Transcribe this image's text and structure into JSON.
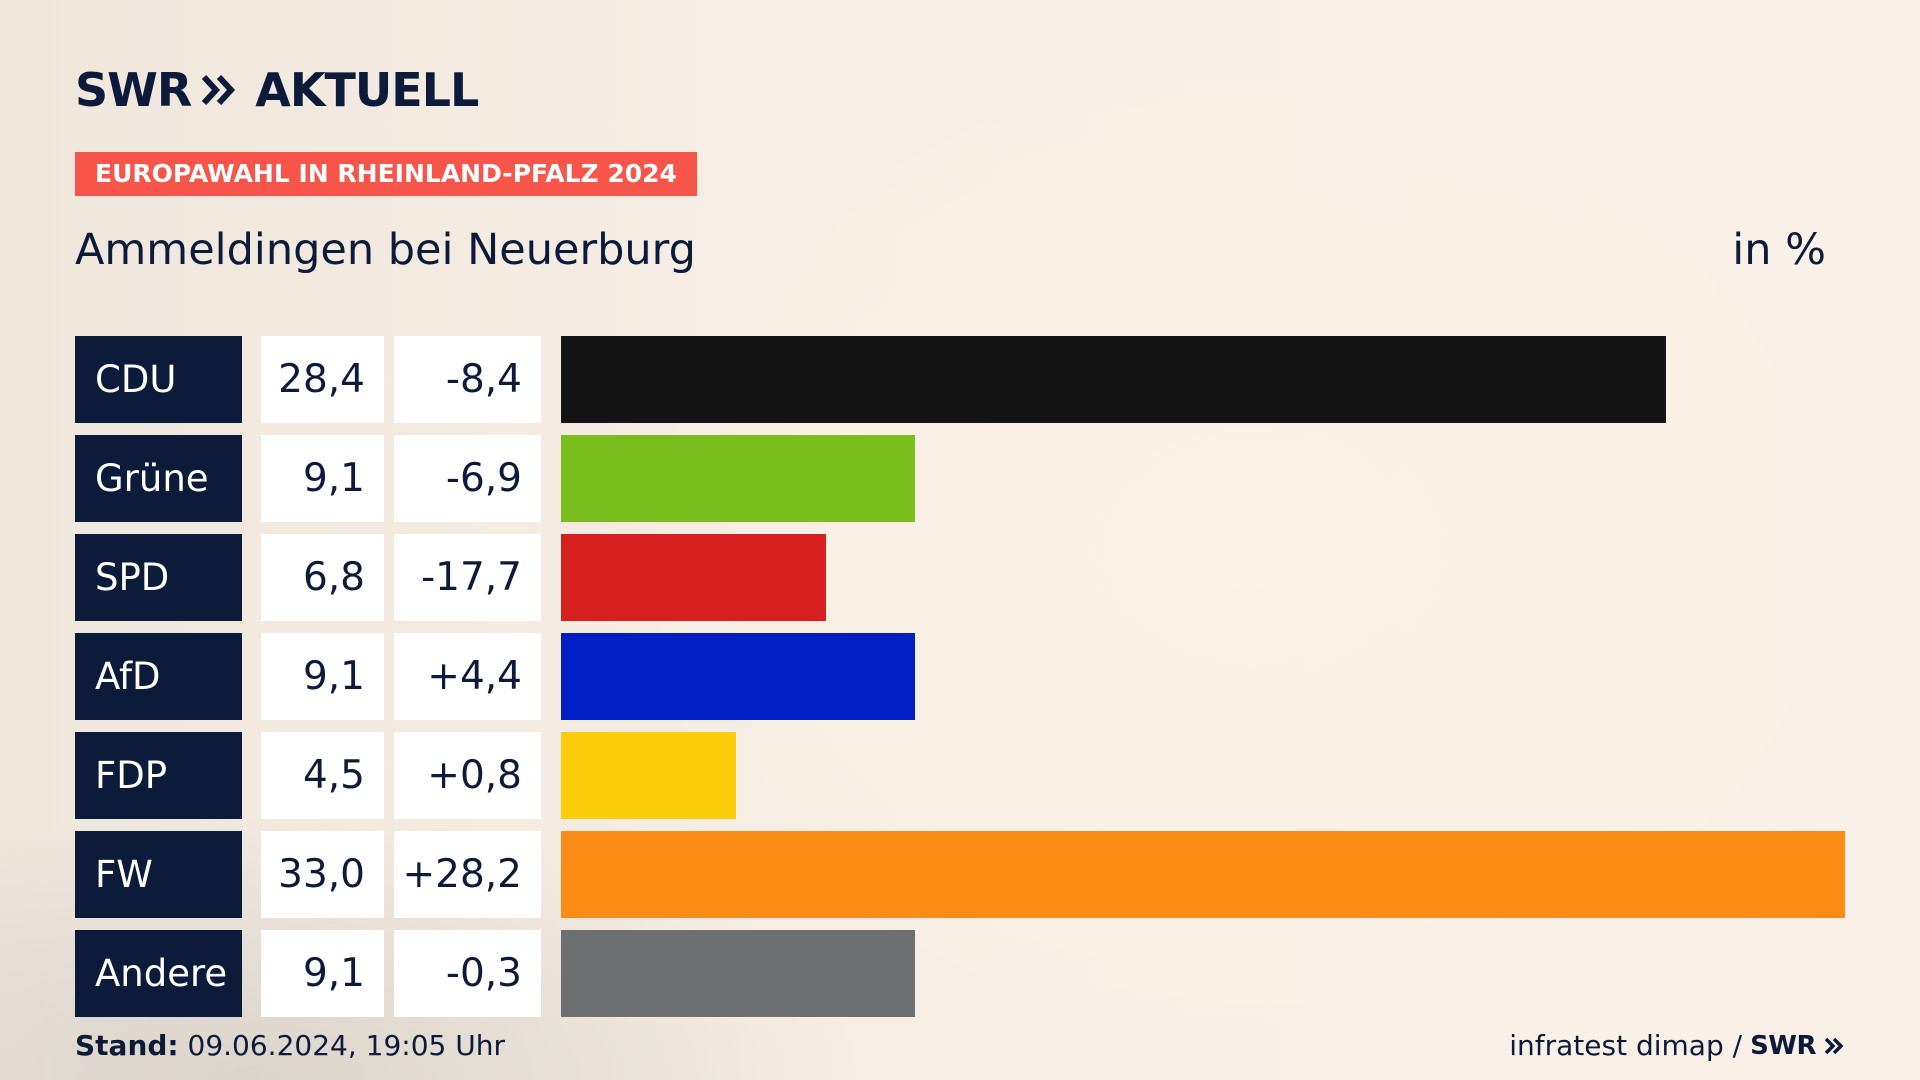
{
  "header": {
    "logo_brand": "SWR",
    "logo_suffix": "AKTUELL",
    "tag": "EUROPAWAHL IN RHEINLAND-PFALZ 2024",
    "title": "Ammeldingen bei Neuerburg",
    "unit": "in %"
  },
  "footer": {
    "stand_label": "Stand:",
    "stand_value": " 09.06.2024, 19:05 Uhr",
    "source": "infratest dimap /",
    "source_logo": "SWR"
  },
  "colors": {
    "navy": "#0d1b3a",
    "tag": "#f8554a"
  },
  "chart_data": {
    "type": "bar",
    "orientation": "horizontal",
    "categories": [
      "CDU",
      "Grüne",
      "SPD",
      "AfD",
      "FDP",
      "FW",
      "Andere"
    ],
    "values": [
      28.4,
      9.1,
      6.8,
      9.1,
      4.5,
      33.0,
      9.1
    ],
    "value_labels": [
      "28,4",
      "9,1",
      "6,8",
      "9,1",
      "4,5",
      "33,0",
      "9,1"
    ],
    "diff_labels": [
      "-8,4",
      "-6,9",
      "-17,7",
      "+4,4",
      "+0,8",
      "+28,2",
      "-0,3"
    ],
    "diffs": [
      -8.4,
      -6.9,
      -17.7,
      4.4,
      0.8,
      28.2,
      -0.3
    ],
    "bar_colors": [
      "#141414",
      "#7abe1e",
      "#d61f1f",
      "#0020c6",
      "#fccd0a",
      "#fb8c16",
      "#6e6f70"
    ],
    "xlim": [
      0,
      33.0
    ],
    "grid": false
  }
}
